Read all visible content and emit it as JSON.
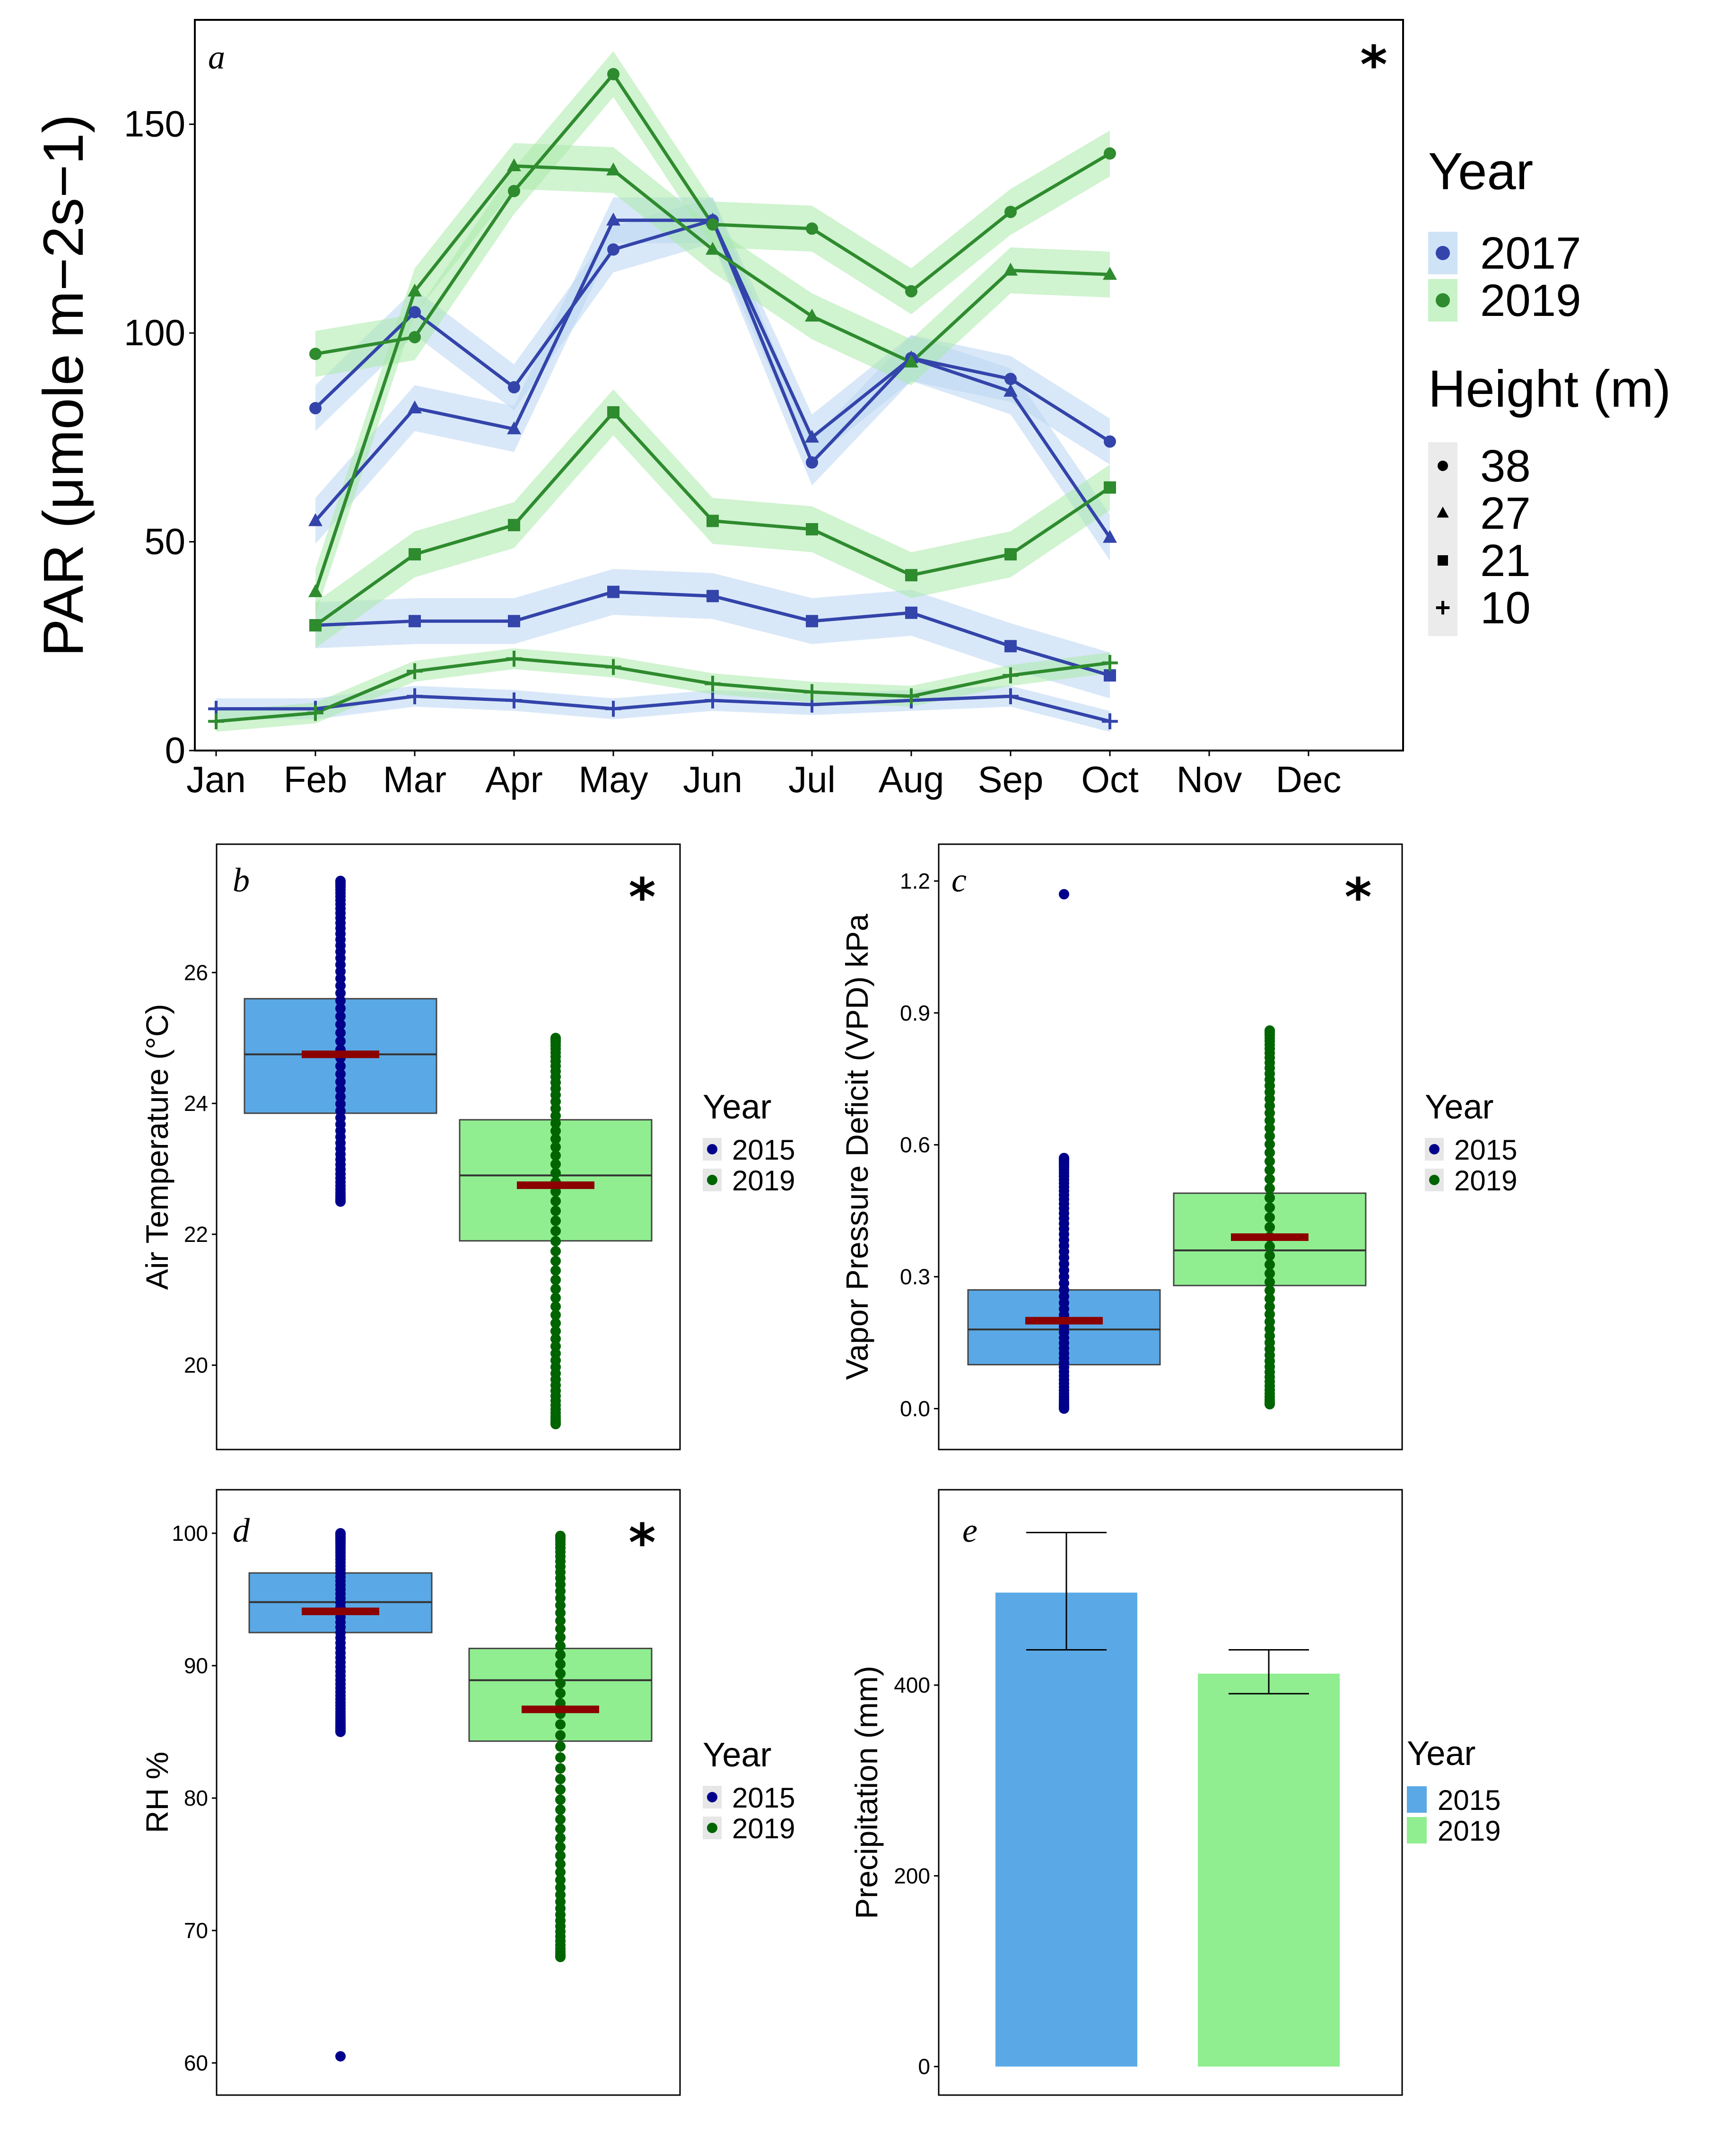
{
  "chart_data": [
    {
      "panel": "a",
      "type": "line",
      "significance": "*",
      "ylabel": "PAR (μmole m−2s−1)",
      "ylim": [
        0,
        175
      ],
      "yticks": [
        0,
        50,
        100,
        150
      ],
      "months": [
        "Jan",
        "Feb",
        "Mar",
        "Apr",
        "May",
        "Jun",
        "Jul",
        "Aug",
        "Sep",
        "Oct",
        "Nov",
        "Dec"
      ],
      "legend": {
        "year_title": "Year",
        "years": [
          {
            "label": "2017",
            "color": "#3344aa"
          },
          {
            "label": "2019",
            "color": "#2e8b2e"
          }
        ],
        "height_title": "Height (m)",
        "heights": [
          {
            "label": "38",
            "shape": "circle"
          },
          {
            "label": "27",
            "shape": "triangle"
          },
          {
            "label": "21",
            "shape": "square"
          },
          {
            "label": "10",
            "shape": "plus"
          }
        ]
      },
      "series": [
        {
          "year": "2017",
          "height": "38",
          "shape": "circle",
          "x": [
            2,
            3,
            4,
            5,
            6,
            7,
            8,
            9,
            10
          ],
          "y": [
            82,
            105,
            87,
            120,
            127,
            69,
            94,
            89,
            74
          ]
        },
        {
          "year": "2017",
          "height": "27",
          "shape": "triangle",
          "x": [
            2,
            3,
            4,
            5,
            6,
            7,
            8,
            9,
            10
          ],
          "y": [
            55,
            82,
            77,
            127,
            127,
            75,
            94,
            86,
            51
          ]
        },
        {
          "year": "2017",
          "height": "21",
          "shape": "square",
          "x": [
            2,
            3,
            4,
            5,
            6,
            7,
            8,
            9,
            10
          ],
          "y": [
            30,
            31,
            31,
            38,
            37,
            31,
            33,
            25,
            18
          ]
        },
        {
          "year": "2017",
          "height": "10",
          "shape": "plus",
          "x": [
            1,
            2,
            3,
            4,
            5,
            6,
            7,
            8,
            9,
            10
          ],
          "y": [
            10,
            10,
            13,
            12,
            10,
            12,
            11,
            12,
            13,
            7
          ]
        },
        {
          "year": "2019",
          "height": "38",
          "shape": "circle",
          "x": [
            2,
            3,
            4,
            5,
            6,
            7,
            8,
            9,
            10
          ],
          "y": [
            95,
            99,
            134,
            162,
            126,
            125,
            110,
            129,
            143
          ]
        },
        {
          "year": "2019",
          "height": "27",
          "shape": "triangle",
          "x": [
            2,
            3,
            4,
            5,
            6,
            7,
            8,
            9,
            10
          ],
          "y": [
            38,
            110,
            140,
            139,
            120,
            104,
            93,
            115,
            114
          ]
        },
        {
          "year": "2019",
          "height": "21",
          "shape": "square",
          "x": [
            2,
            3,
            4,
            5,
            6,
            7,
            8,
            9,
            10
          ],
          "y": [
            30,
            47,
            54,
            81,
            55,
            53,
            42,
            47,
            63
          ]
        },
        {
          "year": "2019",
          "height": "10",
          "shape": "plus",
          "x": [
            1,
            2,
            3,
            4,
            5,
            6,
            7,
            8,
            9,
            10
          ],
          "y": [
            7,
            9,
            19,
            22,
            20,
            16,
            14,
            13,
            18,
            21
          ]
        }
      ]
    },
    {
      "panel": "b",
      "type": "box",
      "significance": "*",
      "ylabel": "Air Temperature (°C)",
      "ylim": [
        19.0,
        27.6
      ],
      "yticks": [
        20,
        22,
        24,
        26
      ],
      "legend_title": "Year",
      "groups": [
        {
          "label": "2015",
          "q1": 23.85,
          "median": 24.75,
          "q3": 25.6,
          "whisker_min": 22.5,
          "whisker_max": 27.4,
          "mean": 24.75,
          "color": "#5aa9e6",
          "point_color": "#00008b"
        },
        {
          "label": "2019",
          "q1": 21.9,
          "median": 22.9,
          "q3": 23.75,
          "whisker_min": 19.1,
          "whisker_max": 25.0,
          "mean": 22.75,
          "color": "#90ee90",
          "point_color": "#006400"
        }
      ]
    },
    {
      "panel": "c",
      "type": "box",
      "significance": "*",
      "ylabel": "Vapor Pressure Deficit (VPD) kPa",
      "ylim": [
        -0.05,
        1.23
      ],
      "yticks": [
        0.0,
        0.3,
        0.6,
        0.9,
        1.2
      ],
      "ytick_labels": [
        "0.0",
        "0.3",
        "0.6",
        "0.9",
        "1.2"
      ],
      "legend_title": "Year",
      "groups": [
        {
          "label": "2015",
          "q1": 0.1,
          "median": 0.18,
          "q3": 0.27,
          "whisker_min": 0.0,
          "whisker_max": 0.57,
          "mean": 0.2,
          "outlier": 1.17,
          "color": "#5aa9e6",
          "point_color": "#00008b"
        },
        {
          "label": "2019",
          "q1": 0.28,
          "median": 0.36,
          "q3": 0.49,
          "whisker_min": 0.01,
          "whisker_max": 0.86,
          "mean": 0.39,
          "color": "#90ee90",
          "point_color": "#006400"
        }
      ]
    },
    {
      "panel": "d",
      "type": "box",
      "significance": "*",
      "ylabel": "RH %",
      "ylim": [
        59,
        101.5
      ],
      "yticks": [
        60,
        70,
        80,
        90,
        100
      ],
      "legend_title": "Year",
      "groups": [
        {
          "label": "2015",
          "q1": 92.5,
          "median": 94.8,
          "q3": 97.0,
          "whisker_min": 85.0,
          "whisker_max": 100.0,
          "mean": 94.1,
          "outlier": 60.5,
          "color": "#5aa9e6",
          "point_color": "#00008b"
        },
        {
          "label": "2019",
          "q1": 84.3,
          "median": 88.9,
          "q3": 91.3,
          "whisker_min": 68.0,
          "whisker_max": 99.8,
          "mean": 86.7,
          "color": "#90ee90",
          "point_color": "#006400"
        }
      ]
    },
    {
      "panel": "e",
      "type": "bar",
      "ylabel": "Precipitation (mm)",
      "ylim": [
        -20,
        590
      ],
      "yticks": [
        0,
        200,
        400
      ],
      "legend_title": "Year",
      "categories": [
        "2015",
        "2019"
      ],
      "values": [
        497,
        412
      ],
      "error_low": [
        437,
        391
      ],
      "error_high": [
        560,
        437
      ],
      "colors": [
        "#5aa9e6",
        "#90ee90"
      ]
    }
  ]
}
